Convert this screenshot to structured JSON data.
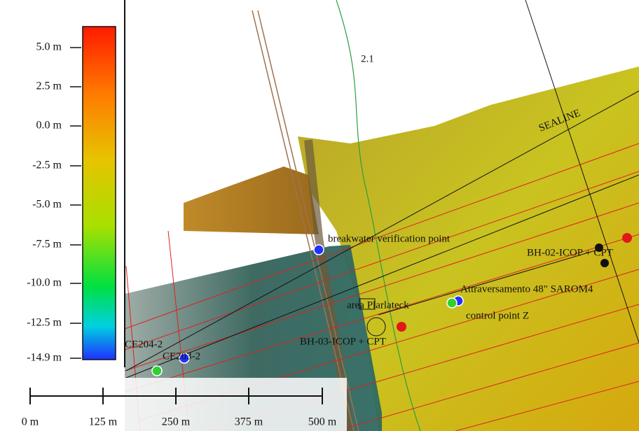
{
  "colorbar": {
    "labels": [
      "5.0 m",
      "2.5 m",
      "0.0 m",
      "-2.5 m",
      "-5.0 m",
      "-7.5 m",
      "-10.0 m",
      "-12.5 m",
      "-14.9 m"
    ]
  },
  "scale_bar": {
    "labels": [
      "0 m",
      "125 m",
      "250 m",
      "375 m",
      "500 m"
    ]
  },
  "map_labels": [
    "2.1",
    "SEALINE",
    "breakwater verification point",
    "BH-02-ICOP + CPT",
    "Attraversamento 48\" SAROM4",
    "area Plarlateck",
    "control point Z",
    "BH-03-ICOP + CPT",
    "CE204-2",
    "CE203-2"
  ]
}
